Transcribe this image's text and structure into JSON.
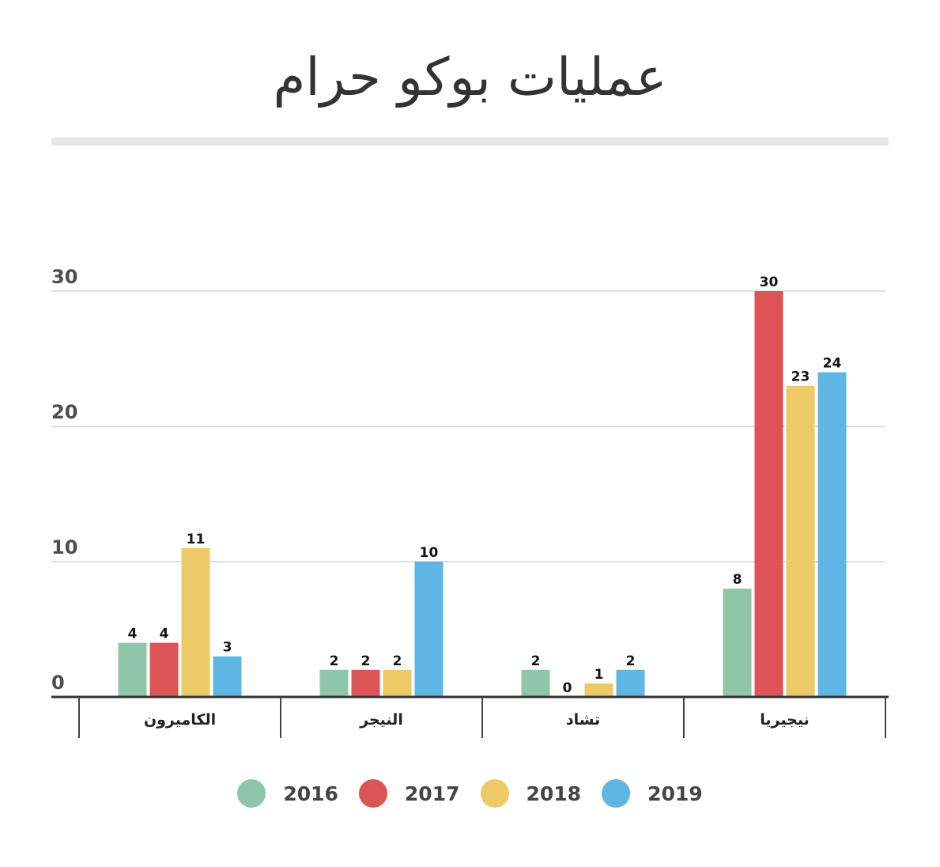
{
  "title": "عمليات بوكو حرام",
  "chart_data": {
    "type": "bar",
    "title": "عمليات بوكو حرام",
    "categories": [
      "الكاميرون",
      "النيجر",
      "تشاد",
      "نيجيريا"
    ],
    "series": [
      {
        "name": "2016",
        "color": "#8fc5a8",
        "values": [
          4,
          2,
          2,
          8
        ]
      },
      {
        "name": "2017",
        "color": "#dc5454",
        "values": [
          4,
          2,
          0,
          30
        ]
      },
      {
        "name": "2018",
        "color": "#eeca66",
        "values": [
          11,
          2,
          1,
          23
        ]
      },
      {
        "name": "2019",
        "color": "#5fb6e4",
        "values": [
          3,
          10,
          2,
          24
        ]
      }
    ],
    "yticks": [
      "0",
      "10",
      "20",
      "30"
    ],
    "ylim": [
      0,
      30
    ],
    "grid": true,
    "legend_position": "bottom-center",
    "xlabel": "",
    "ylabel": ""
  }
}
